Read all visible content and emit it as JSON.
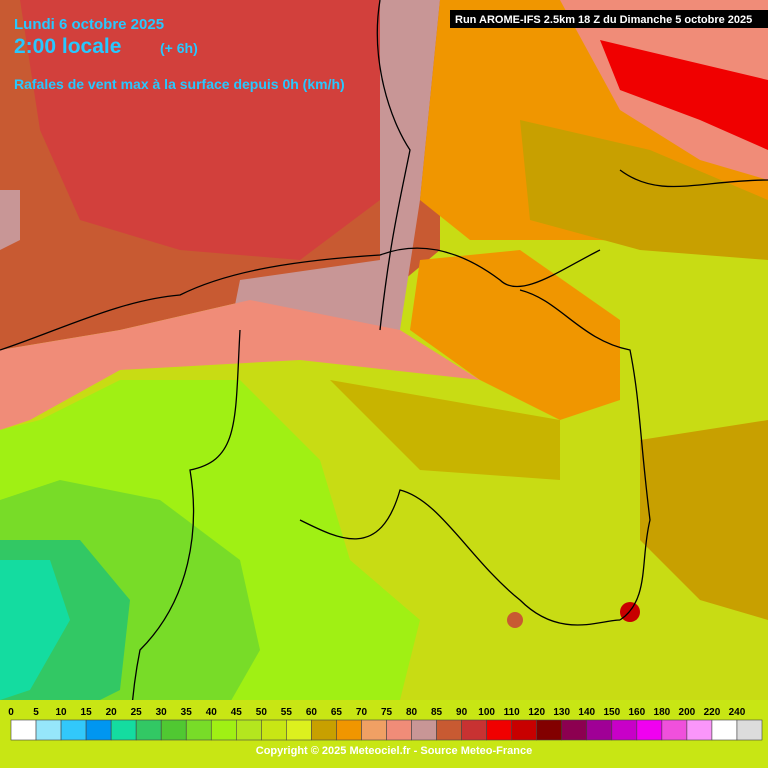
{
  "header": {
    "date": "Lundi 6 octobre 2025",
    "time": "2:00 locale",
    "offset": "(+ 6h)",
    "parameter": "Rafales de vent max à la surface depuis 0h (km/h)",
    "run": "Run AROME-IFS 2.5km 18 Z du Dimanche 5 octobre 2025"
  },
  "legend": {
    "labels": [
      0,
      5,
      10,
      15,
      20,
      25,
      30,
      35,
      40,
      45,
      50,
      55,
      60,
      65,
      70,
      75,
      80,
      85,
      90,
      100,
      110,
      120,
      130,
      140,
      150,
      160,
      180,
      200,
      220,
      240
    ],
    "colors": [
      "#ffffff",
      "#96e6fa",
      "#32c8fa",
      "#0096f0",
      "#14dca0",
      "#32c864",
      "#50c832",
      "#78dc28",
      "#a0f014",
      "#b4e61e",
      "#c8e614",
      "#dcf01e",
      "#c8a000",
      "#f09600",
      "#f0a064",
      "#f08c78",
      "#c89696",
      "#c85a32",
      "#c83232",
      "#f00000",
      "#c80000",
      "#820000",
      "#8c0050",
      "#a00096",
      "#c800c8",
      "#f000f0",
      "#f050dc",
      "#fa96fa",
      "#ffffff",
      "#dcdcdc"
    ]
  },
  "footer": {
    "copyright": "Copyright © 2025 Meteociel.fr - Source Meteo-France"
  }
}
